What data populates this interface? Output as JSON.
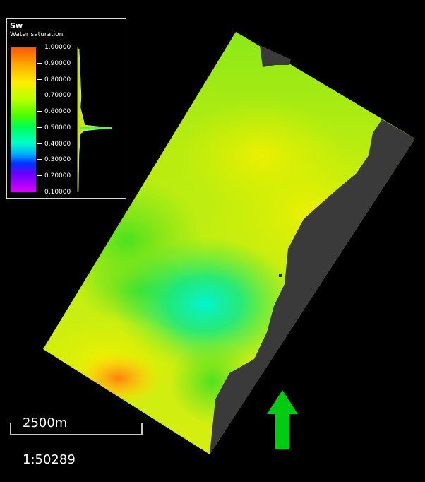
{
  "legend": {
    "title": "Sw",
    "subtitle": "Water saturation",
    "ticks": [
      "1.00000",
      "0.90000",
      "0.80000",
      "0.70000",
      "0.60000",
      "0.50000",
      "0.40000",
      "0.30000",
      "0.20000",
      "0.10000"
    ],
    "colors": {
      "high": "#ff5500",
      "mid_high": "#ffee00",
      "mid": "#4cff00",
      "mid_low": "#00ffcc",
      "low": "#0033ff",
      "min": "#dd00ff"
    }
  },
  "scale": {
    "bar_label": "2500m",
    "ratio": "1:50289"
  },
  "north_arrow": {
    "icon": "north-arrow-icon",
    "color": "#00cc11"
  },
  "map": {
    "background": "#000000",
    "masked_area_color": "#3a3a3a"
  }
}
